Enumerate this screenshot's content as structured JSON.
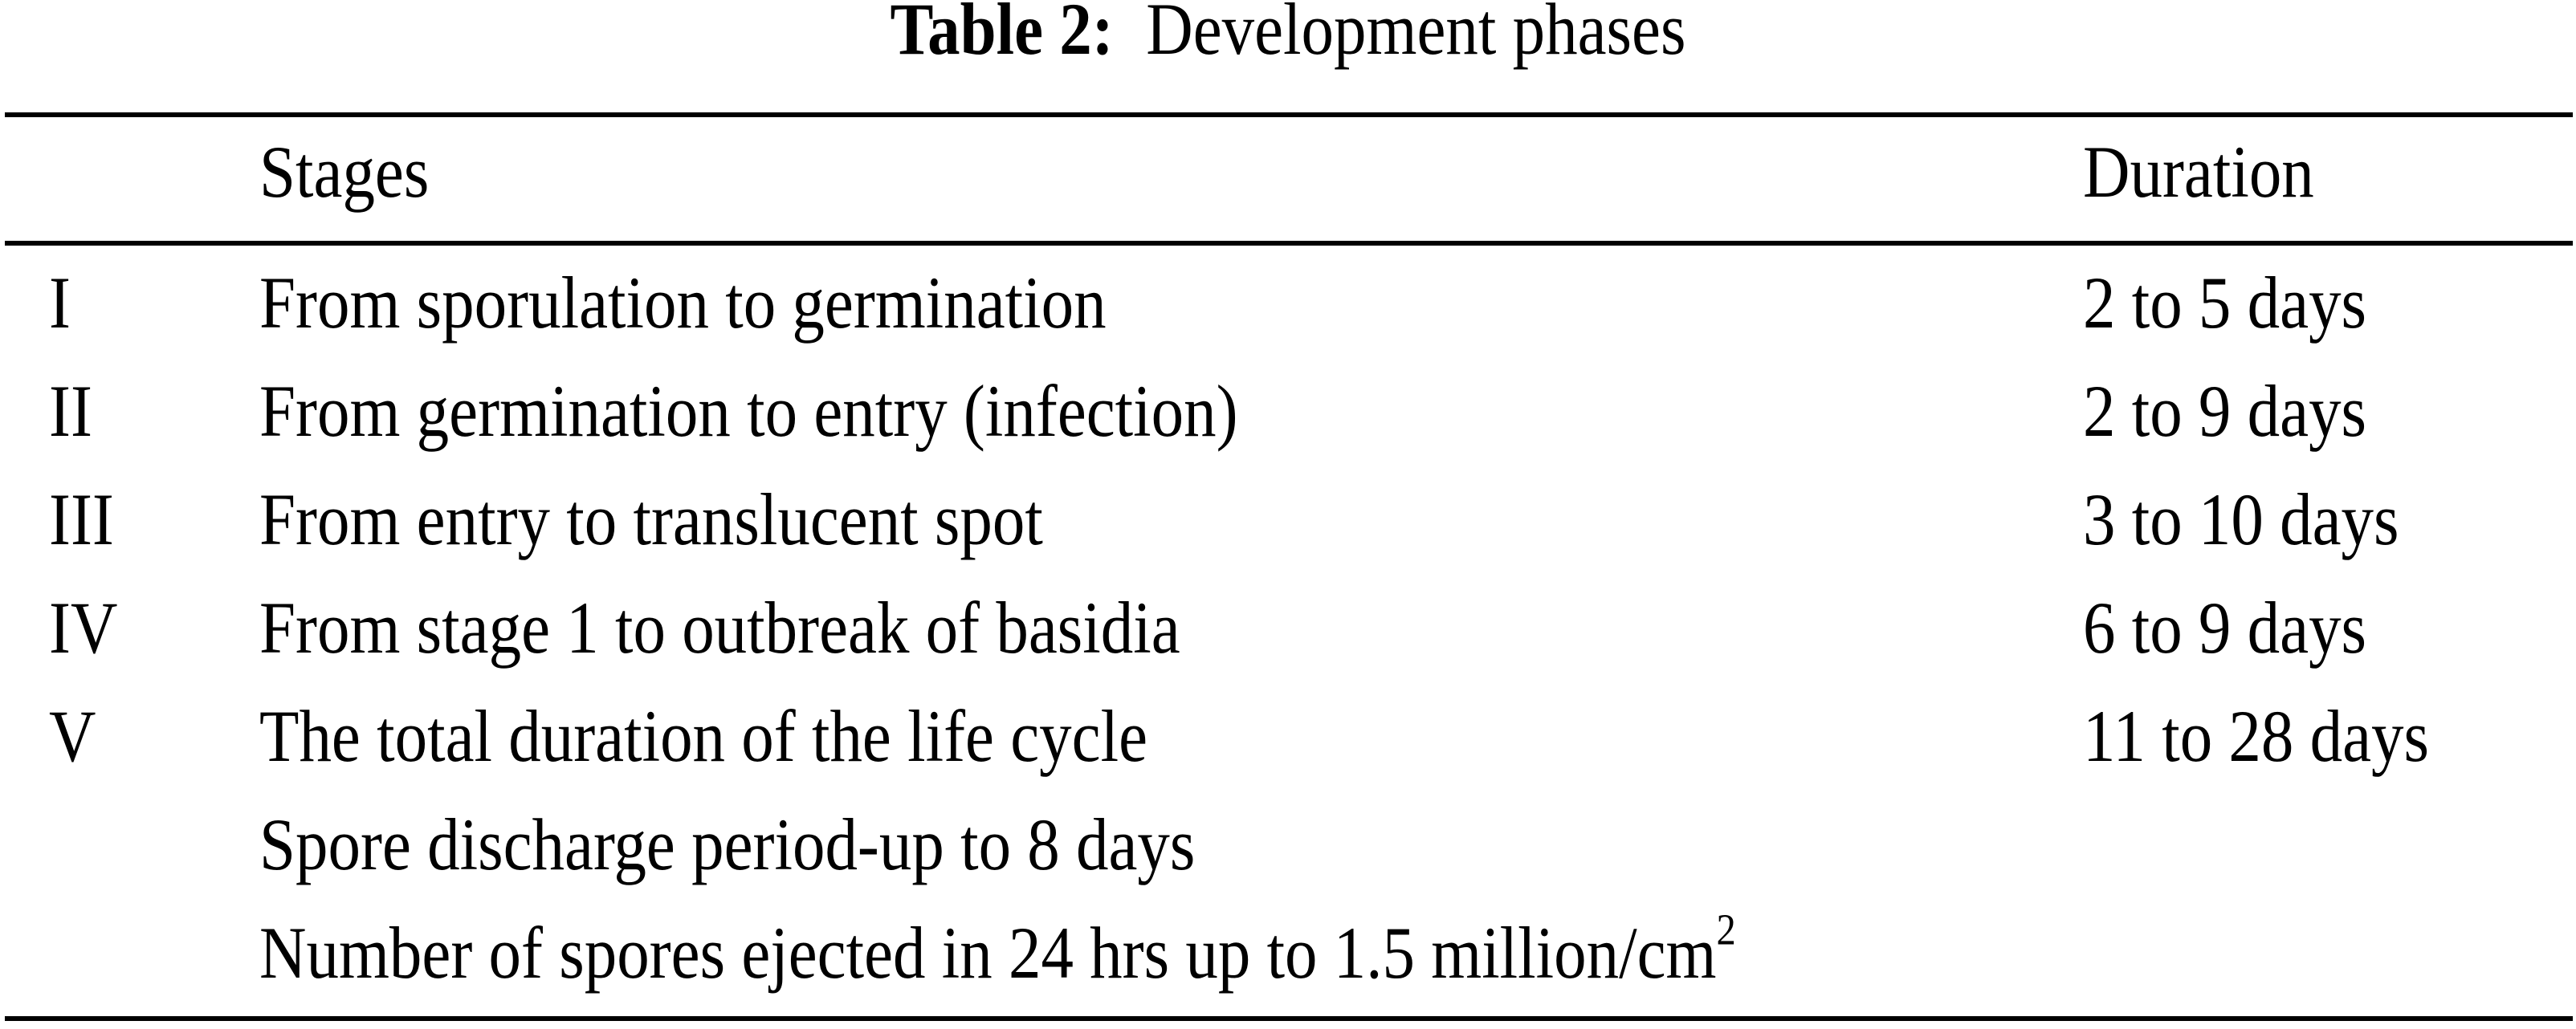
{
  "table": {
    "title_label": "Table 2:",
    "title_text": "Development phases",
    "columns": [
      "",
      "Stages",
      "Duration"
    ],
    "rows": [
      {
        "stage": "I",
        "description": "From sporulation to germination",
        "duration": "2 to 5 days"
      },
      {
        "stage": "II",
        "description": "From germination to entry (infection)",
        "duration": "2 to 9 days"
      },
      {
        "stage": "III",
        "description": "From entry to translucent spot",
        "duration": "3 to 10 days"
      },
      {
        "stage": "IV",
        "description": "From stage 1 to outbreak of basidia",
        "duration": "6 to 9 days"
      },
      {
        "stage": "V",
        "description": "The total duration of the life cycle",
        "duration": "11 to 28 days"
      }
    ],
    "notes": [
      {
        "text": "Spore discharge period-up to 8 days"
      },
      {
        "text": "Number of spores ejected in 24 hrs up to 1.5 million/cm",
        "superscript": "2"
      }
    ]
  }
}
